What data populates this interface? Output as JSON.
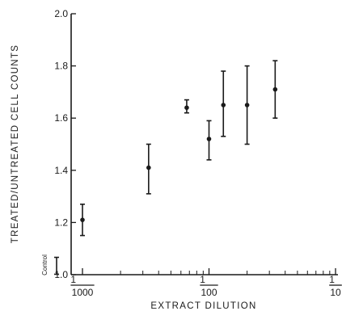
{
  "chart_data": {
    "type": "scatter",
    "title": "",
    "xlabel": "EXTRACT DILUTION",
    "ylabel": "TREATED/UNTREATED CELL COUNTS",
    "x_scale": "log",
    "xlim": [
      1000,
      10
    ],
    "ylim": [
      1.0,
      2.0
    ],
    "y_ticks": [
      "1.0",
      "1.2",
      "1.4",
      "1.6",
      "1.8",
      "2.0"
    ],
    "x_tick_labels": [
      {
        "value": 1000,
        "numerator": "1",
        "denominator": "1000"
      },
      {
        "value": 100,
        "numerator": "1",
        "denominator": "100"
      },
      {
        "value": 10,
        "numerator": "1",
        "denominator": "10"
      }
    ],
    "points": [
      {
        "x": 1000,
        "y": 1.21,
        "low": 1.15,
        "high": 1.27
      },
      {
        "x": 300,
        "y": 1.41,
        "low": 1.31,
        "high": 1.5
      },
      {
        "x": 150,
        "y": 1.64,
        "low": 1.62,
        "high": 1.67
      },
      {
        "x": 100,
        "y": 1.52,
        "low": 1.44,
        "high": 1.59
      },
      {
        "x": 77,
        "y": 1.65,
        "low": 1.53,
        "high": 1.78
      },
      {
        "x": 50,
        "y": 1.65,
        "low": 1.5,
        "high": 1.8
      },
      {
        "x": 30,
        "y": 1.71,
        "low": 1.6,
        "high": 1.82
      }
    ],
    "control": {
      "label": "Control",
      "low": 0.98,
      "high": 1.02
    },
    "grid": false
  }
}
